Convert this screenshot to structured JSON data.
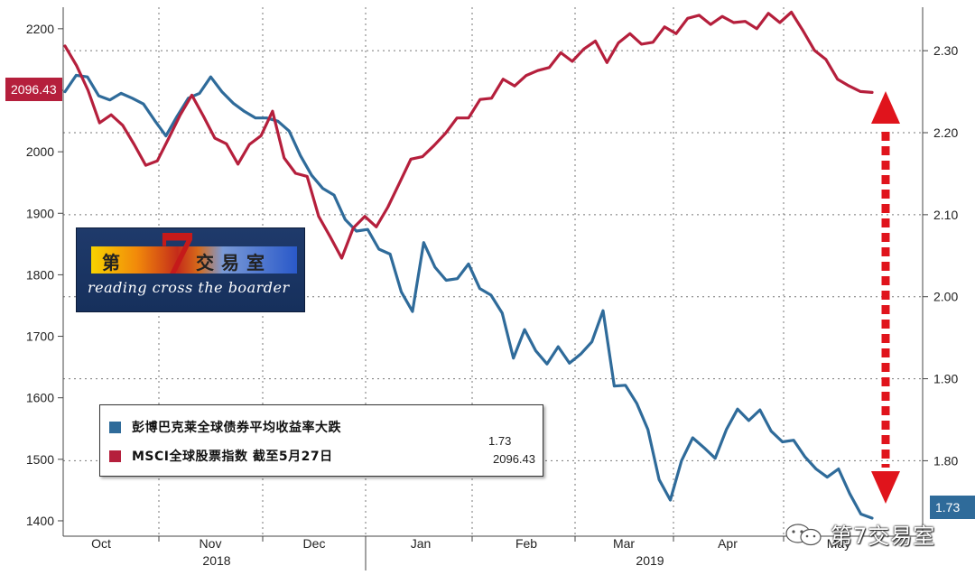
{
  "chart_data": {
    "type": "line",
    "left_axis": {
      "ticks": [
        "2200",
        "2100",
        "2000",
        "1900",
        "1800",
        "1700",
        "1600",
        "1500",
        "1400"
      ],
      "ylim": [
        1375,
        2235
      ]
    },
    "right_axis": {
      "ticks": [
        "2.30",
        "2.20",
        "2.10",
        "2.00",
        "1.90",
        "1.80"
      ],
      "ylim": [
        1.708,
        2.353
      ]
    },
    "months": [
      "Oct",
      "Nov",
      "Dec",
      "Jan",
      "Feb",
      "Mar",
      "Apr",
      "May"
    ],
    "years": [
      "2018",
      "2019"
    ],
    "grid": true,
    "legend_position": "bottom-left",
    "series": [
      {
        "name": "彭博巴克莱全球债券平均收益率大跌",
        "axis": "right",
        "color": "#2f6b9a",
        "last_value": "1.73",
        "values": [
          2.25,
          2.27,
          2.268,
          2.245,
          2.24,
          2.248,
          2.242,
          2.235,
          2.215,
          2.196,
          2.22,
          2.242,
          2.248,
          2.268,
          2.25,
          2.236,
          2.226,
          2.218,
          2.218,
          2.214,
          2.202,
          2.172,
          2.148,
          2.132,
          2.124,
          2.094,
          2.08,
          2.082,
          2.058,
          2.052,
          2.006,
          1.982,
          2.066,
          2.036,
          2.02,
          2.022,
          2.04,
          2.01,
          2.002,
          1.98,
          1.925,
          1.96,
          1.934,
          1.918,
          1.939,
          1.919,
          1.93,
          1.945,
          1.983,
          1.891,
          1.892,
          1.87,
          1.838,
          1.777,
          1.752,
          1.8,
          1.828,
          1.816,
          1.803,
          1.838,
          1.863,
          1.849,
          1.862,
          1.836,
          1.823,
          1.825,
          1.805,
          1.79,
          1.78,
          1.79,
          1.76,
          1.735,
          1.73
        ]
      },
      {
        "name": "MSCI全球股票指数 截至5月27日",
        "axis": "left",
        "color": "#b51f3c",
        "last_value": "2096.43",
        "values": [
          2172,
          2140,
          2100,
          2047,
          2060,
          2043,
          2012,
          1978,
          1985,
          2022,
          2060,
          2092,
          2058,
          2022,
          2013,
          1980,
          2012,
          2026,
          2066,
          1990,
          1965,
          1960,
          1895,
          1862,
          1827,
          1876,
          1895,
          1878,
          1910,
          1949,
          1988,
          1992,
          2010,
          2030,
          2055,
          2055,
          2085,
          2087,
          2118,
          2107,
          2124,
          2132,
          2137,
          2161,
          2147,
          2167,
          2180,
          2145,
          2177,
          2192,
          2175,
          2178,
          2203,
          2192,
          2217,
          2222,
          2207,
          2220,
          2210,
          2212,
          2200,
          2225,
          2210,
          2227,
          2197,
          2165,
          2150,
          2118,
          2107,
          2098,
          2096.43
        ]
      }
    ]
  },
  "colors": {
    "blue": "#2f6b9a",
    "red": "#b51f3c",
    "arrow": "#e0141c"
  },
  "legend": {
    "items": [
      {
        "label": "彭博巴克莱全球债券平均收益率大跌",
        "value": "1.73",
        "color": "#2f6b9a"
      },
      {
        "label": "MSCI全球股票指数 截至5月27日",
        "value": "2096.43",
        "color": "#b51f3c"
      }
    ]
  },
  "value_boxes": {
    "left": "2096.43",
    "right": "1.73"
  },
  "logo": {
    "chars": [
      "第",
      "7",
      "交",
      "易",
      "室"
    ],
    "subtitle": "reading cross the boarder"
  },
  "watermark": {
    "text": "第7交易室",
    "icon": "wechat-icon"
  }
}
